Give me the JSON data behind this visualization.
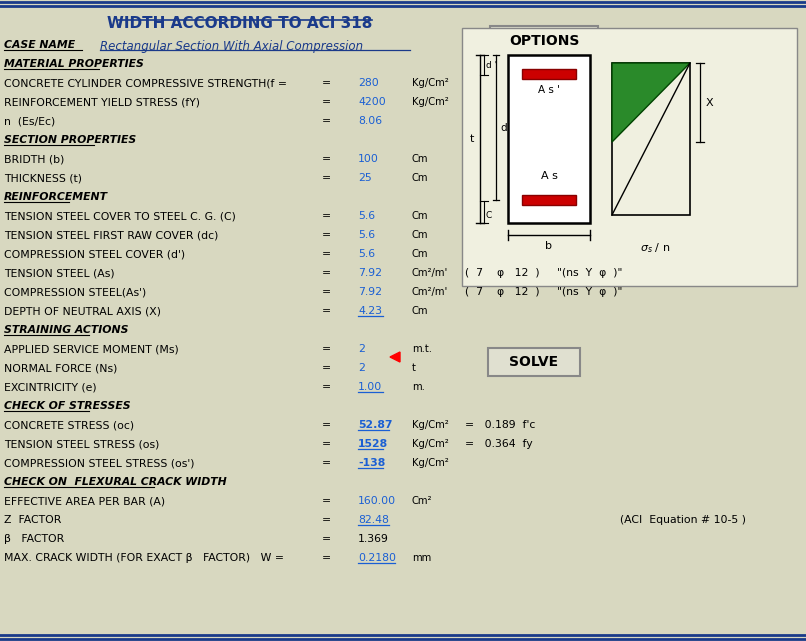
{
  "title": "WIDTH ACCORDING TO ACI 318",
  "bg_color": "#d8d8c0",
  "blue_color": "#1a3a8a",
  "red_color": "#cc0000",
  "green_color": "#2a8a2a",
  "text_color": "#000000",
  "value_color": "#1a5fd4",
  "rows": [
    {
      "label": "CASE NAME",
      "style": "bold_italic_underline",
      "value": "Rectangular Section With Axial Compression",
      "value_style": "blue_italic_underline",
      "unit": "",
      "eq": ""
    },
    {
      "label": "MATERIAL PROPERTIES",
      "style": "bold_italic_underline",
      "value": "",
      "value_style": "",
      "unit": "",
      "eq": ""
    },
    {
      "label": "CONCRETE CYLINDER COMPRESSIVE STRENGTH(f =",
      "style": "normal",
      "value": "280",
      "value_style": "blue",
      "unit": "Kg/Cm²",
      "eq": ""
    },
    {
      "label": "REINFORCEMENT YIELD STRESS (fY)",
      "style": "normal",
      "value": "4200",
      "value_style": "blue",
      "unit": "Kg/Cm²",
      "eq": ""
    },
    {
      "label": "n  (Es/Ec)",
      "style": "normal",
      "value": "8.06",
      "value_style": "blue",
      "unit": "",
      "eq": ""
    },
    {
      "label": "SECTION PROPERTIES",
      "style": "bold_italic_underline",
      "value": "",
      "value_style": "",
      "unit": "",
      "eq": ""
    },
    {
      "label": "BRIDTH (b)",
      "style": "normal",
      "value": "100",
      "value_style": "blue",
      "unit": "Cm",
      "eq": ""
    },
    {
      "label": "THICKNESS (t)",
      "style": "normal",
      "value": "25",
      "value_style": "blue",
      "unit": "Cm",
      "eq": ""
    },
    {
      "label": "REINFORCEMENT",
      "style": "bold_italic_underline",
      "value": "",
      "value_style": "",
      "unit": "",
      "eq": ""
    },
    {
      "label": "TENSION STEEL COVER TO STEEL C. G. (C)",
      "style": "normal",
      "value": "5.6",
      "value_style": "blue",
      "unit": "Cm",
      "eq": ""
    },
    {
      "label": "TENSION STEEL FIRST RAW COVER (dc)",
      "style": "normal",
      "value": "5.6",
      "value_style": "blue",
      "unit": "Cm",
      "eq": ""
    },
    {
      "label": "COMPRESSION STEEL COVER (d')",
      "style": "normal",
      "value": "5.6",
      "value_style": "blue",
      "unit": "Cm",
      "eq": ""
    },
    {
      "label": "TENSION STEEL (As)",
      "style": "normal",
      "value": "7.92",
      "value_style": "blue",
      "unit": "Cm²/m'",
      "eq": "(  7    φ   12  )     \"(ns  Y  φ  )\""
    },
    {
      "label": "COMPRESSION STEEL(As')",
      "style": "normal",
      "value": "7.92",
      "value_style": "blue",
      "unit": "Cm²/m'",
      "eq": "(  7    φ   12  )     \"(ns  Y  φ  )\""
    },
    {
      "label": "DEPTH OF NEUTRAL AXIS (X)",
      "style": "normal",
      "value": "4.23",
      "value_style": "blue_underline",
      "unit": "Cm",
      "eq": ""
    },
    {
      "label": "STRAINING ACTIONS",
      "style": "bold_italic_underline",
      "value": "",
      "value_style": "",
      "unit": "",
      "eq": ""
    },
    {
      "label": "APPLIED SERVICE MOMENT (Ms)",
      "style": "normal",
      "value": "2",
      "value_style": "blue",
      "unit": "m.t.",
      "eq": ""
    },
    {
      "label": "NORMAL FORCE (Ns)",
      "style": "normal",
      "value": "2",
      "value_style": "blue",
      "unit": "t",
      "eq": ""
    },
    {
      "label": "EXCINTRICITY (e)",
      "style": "normal",
      "value": "1.00",
      "value_style": "blue_underline",
      "unit": "m.",
      "eq": ""
    },
    {
      "label": "CHECK OF STRESSES",
      "style": "bold_italic_underline",
      "value": "",
      "value_style": "",
      "unit": "",
      "eq": ""
    },
    {
      "label": "CONCRETE STRESS (oc)",
      "style": "normal",
      "value": "52.87",
      "value_style": "blue_underline_bold",
      "unit": "Kg/Cm²",
      "eq": "=   0.189  f'c"
    },
    {
      "label": "TENSION STEEL STRESS (os)",
      "style": "normal",
      "value": "1528",
      "value_style": "blue_underline_bold",
      "unit": "Kg/Cm²",
      "eq": "=   0.364  fy"
    },
    {
      "label": "COMPRESSION STEEL STRESS (os')",
      "style": "normal",
      "value": "-138",
      "value_style": "blue_underline_bold",
      "unit": "Kg/Cm²",
      "eq": ""
    },
    {
      "label": "CHECK ON  FLEXURAL CRACK WIDTH",
      "style": "bold_italic_underline",
      "value": "",
      "value_style": "",
      "unit": "",
      "eq": ""
    },
    {
      "label": "EFFECTIVE AREA PER BAR (A)",
      "style": "normal",
      "value": "160.00",
      "value_style": "blue",
      "unit": "Cm²",
      "eq": ""
    },
    {
      "label": "Z  FACTOR",
      "style": "normal",
      "value": "82.48",
      "value_style": "blue_underline",
      "unit": "",
      "eq": "(ACI  Equation # 10-5 )"
    },
    {
      "label": "β   FACTOR",
      "style": "normal",
      "value": "1.369",
      "value_style": "normal",
      "unit": "",
      "eq": ""
    },
    {
      "label": "MAX. CRACK WIDTH (FOR EXACT β   FACTOR)   W =",
      "style": "normal",
      "value": "0.2180",
      "value_style": "blue_underline",
      "unit": "mm",
      "eq": ""
    }
  ]
}
